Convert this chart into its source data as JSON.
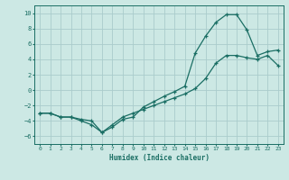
{
  "xlabel": "Humidex (Indice chaleur)",
  "background_color": "#cce8e4",
  "grid_color": "#aacccc",
  "line_color": "#1a6e64",
  "xlim": [
    -0.5,
    23.5
  ],
  "ylim": [
    -7,
    11
  ],
  "yticks": [
    -6,
    -4,
    -2,
    0,
    2,
    4,
    6,
    8,
    10
  ],
  "xticks": [
    0,
    1,
    2,
    3,
    4,
    5,
    6,
    7,
    8,
    9,
    10,
    11,
    12,
    13,
    14,
    15,
    16,
    17,
    18,
    19,
    20,
    21,
    22,
    23
  ],
  "curve1_x": [
    0,
    1,
    2,
    3,
    4,
    5,
    6,
    7,
    8,
    9,
    10,
    11,
    12,
    13,
    14,
    15,
    16,
    17,
    18,
    19,
    20,
    21,
    22,
    23
  ],
  "curve1_y": [
    -3.0,
    -3.0,
    -3.5,
    -3.5,
    -4.0,
    -4.5,
    -5.5,
    -4.8,
    -3.8,
    -3.5,
    -2.2,
    -1.5,
    -0.8,
    -0.2,
    0.5,
    4.8,
    7.0,
    8.8,
    9.8,
    9.8,
    7.8,
    4.5,
    5.0,
    5.2
  ],
  "curve2_x": [
    0,
    1,
    2,
    3,
    4,
    5,
    6,
    7,
    8,
    9,
    10,
    11,
    12,
    13,
    14,
    15,
    16,
    17,
    18,
    19,
    20,
    21,
    22,
    23
  ],
  "curve2_y": [
    -3.0,
    -3.0,
    -3.5,
    -3.5,
    -3.8,
    -4.0,
    -5.5,
    -4.5,
    -3.5,
    -3.0,
    -2.5,
    -2.0,
    -1.5,
    -1.0,
    -0.5,
    0.2,
    1.5,
    3.5,
    4.5,
    4.5,
    4.2,
    4.0,
    4.5,
    3.2
  ]
}
